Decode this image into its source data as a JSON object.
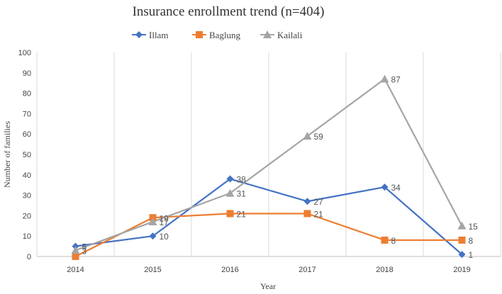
{
  "chart_data": {
    "type": "line",
    "title": "Insurance enrollment trend (n=404)",
    "xlabel": "Year",
    "ylabel": "Number of families",
    "categories": [
      "2014",
      "2015",
      "2016",
      "2017",
      "2018",
      "2019"
    ],
    "ylim": [
      0,
      100
    ],
    "yticks": [
      0,
      10,
      20,
      30,
      40,
      50,
      60,
      70,
      80,
      90,
      100
    ],
    "grid": "vertical",
    "legend": "top",
    "series": [
      {
        "name": "Illam",
        "marker": "diamond",
        "color": "#4472C4",
        "values": [
          5,
          10,
          38,
          27,
          34,
          1
        ],
        "labels": [
          "5",
          "10",
          "38",
          "27",
          "34",
          "1"
        ]
      },
      {
        "name": "Baglung",
        "marker": "square",
        "color": "#ED7D31",
        "values": [
          0,
          19,
          21,
          21,
          8,
          8
        ],
        "labels": [
          "",
          "19",
          "21",
          "21",
          "8",
          "8"
        ]
      },
      {
        "name": "Kailali",
        "marker": "triangle",
        "color": "#A5A5A5",
        "values": [
          3,
          17,
          31,
          59,
          87,
          15
        ],
        "labels": [
          "3",
          "17",
          "31",
          "59",
          "87",
          "15"
        ]
      }
    ]
  }
}
